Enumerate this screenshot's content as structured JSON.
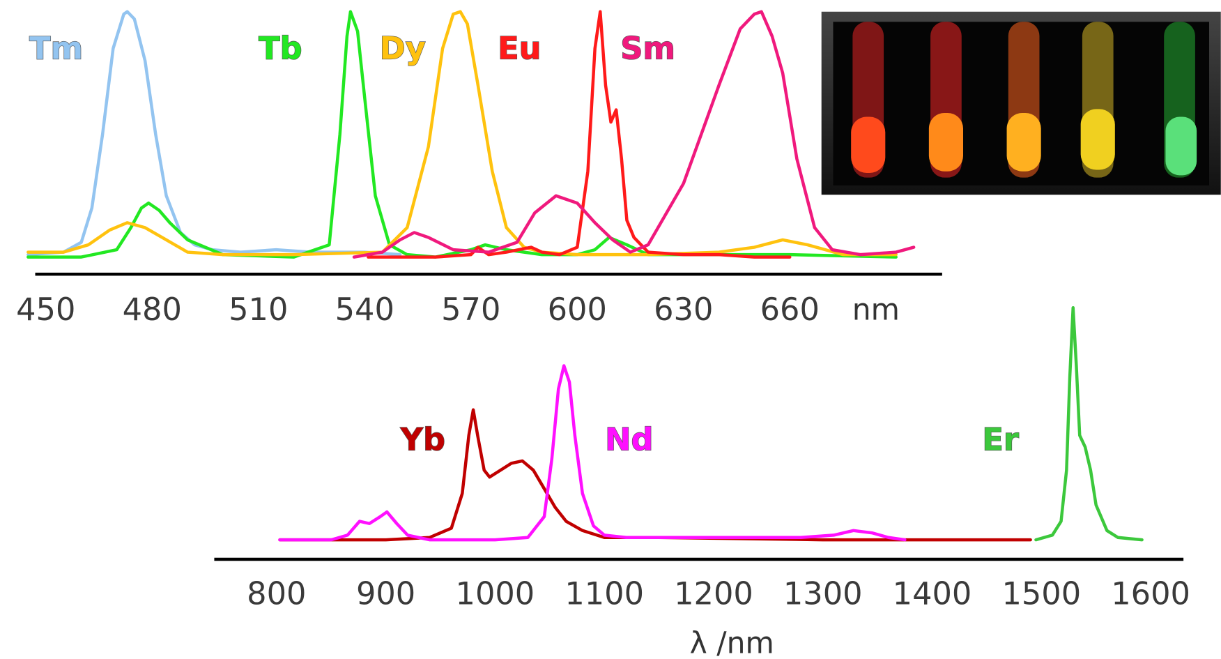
{
  "chart_data": [
    {
      "type": "line",
      "x_label": "nm",
      "xlim": [
        447,
        703
      ],
      "ylim": [
        0,
        1
      ],
      "xticks": [
        450,
        480,
        510,
        540,
        570,
        600,
        630,
        660
      ],
      "series": [
        {
          "name": "Tm",
          "color": "#93c4f0",
          "x": [
            445,
            455,
            460,
            463,
            466,
            469,
            472,
            473,
            475,
            478,
            481,
            484,
            488,
            492,
            497,
            505,
            515,
            525,
            540,
            550
          ],
          "values": [
            0.01,
            0.02,
            0.06,
            0.2,
            0.5,
            0.85,
            0.99,
            1.0,
            0.97,
            0.8,
            0.5,
            0.25,
            0.1,
            0.05,
            0.03,
            0.02,
            0.03,
            0.02,
            0.02,
            0.01
          ]
        },
        {
          "name": "Tb",
          "color": "#22e822",
          "x": [
            445,
            460,
            470,
            474,
            477,
            479,
            482,
            485,
            490,
            500,
            520,
            530,
            533,
            535,
            536,
            538,
            540,
            543,
            547,
            552,
            560,
            570,
            574,
            580,
            590,
            600,
            605,
            609,
            614,
            620,
            640,
            660,
            690
          ],
          "values": [
            0,
            0,
            0.03,
            0.12,
            0.2,
            0.22,
            0.19,
            0.14,
            0.07,
            0.01,
            0,
            0.05,
            0.5,
            0.9,
            1.0,
            0.92,
            0.65,
            0.25,
            0.05,
            0.01,
            0,
            0.03,
            0.05,
            0.03,
            0.01,
            0.01,
            0.03,
            0.08,
            0.05,
            0.01,
            0.01,
            0.01,
            0
          ]
        },
        {
          "name": "Dy",
          "color": "#ffc20e",
          "x": [
            445,
            455,
            462,
            468,
            473,
            478,
            484,
            490,
            500,
            520,
            545,
            552,
            558,
            562,
            565,
            567,
            569,
            572,
            576,
            580,
            585,
            590,
            600,
            620,
            640,
            650,
            658,
            665,
            675,
            690
          ],
          "values": [
            0.02,
            0.02,
            0.05,
            0.11,
            0.14,
            0.12,
            0.07,
            0.02,
            0.01,
            0.01,
            0.02,
            0.12,
            0.45,
            0.85,
            0.99,
            1.0,
            0.95,
            0.7,
            0.35,
            0.12,
            0.04,
            0.02,
            0.01,
            0.01,
            0.02,
            0.04,
            0.07,
            0.05,
            0.01,
            0.01
          ]
        },
        {
          "name": "Eu",
          "color": "#ff1a1a",
          "x": [
            541,
            560,
            570,
            572,
            575,
            580,
            587,
            590,
            595,
            600,
            603,
            605,
            606.5,
            608,
            609.5,
            611,
            612.5,
            614,
            616,
            620,
            630,
            640,
            650,
            660
          ],
          "values": [
            0,
            0,
            0.01,
            0.04,
            0.01,
            0.02,
            0.04,
            0.02,
            0.01,
            0.04,
            0.35,
            0.85,
            1.0,
            0.7,
            0.55,
            0.6,
            0.4,
            0.15,
            0.08,
            0.02,
            0.01,
            0.01,
            0,
            0
          ]
        },
        {
          "name": "Sm",
          "color": "#f0197d",
          "x": [
            537,
            545,
            550,
            554,
            558,
            565,
            575,
            583,
            588,
            594,
            600,
            605,
            610,
            615,
            620,
            630,
            640,
            646,
            650,
            652,
            655,
            658,
            662,
            667,
            672,
            680,
            690,
            695
          ],
          "values": [
            0,
            0.02,
            0.07,
            0.1,
            0.08,
            0.03,
            0.02,
            0.06,
            0.18,
            0.25,
            0.22,
            0.14,
            0.07,
            0.02,
            0.05,
            0.3,
            0.7,
            0.93,
            0.99,
            1.0,
            0.9,
            0.75,
            0.4,
            0.12,
            0.03,
            0.01,
            0.02,
            0.04
          ]
        }
      ]
    },
    {
      "type": "line",
      "x_label": "λ /nm",
      "xlim": [
        743,
        1630
      ],
      "ylim": [
        0,
        1
      ],
      "xticks": [
        800,
        900,
        1000,
        1100,
        1200,
        1300,
        1400,
        1500,
        1600
      ],
      "series": [
        {
          "name": "Yb",
          "color": "#c00000",
          "x": [
            803,
            850,
            900,
            940,
            960,
            970,
            976,
            980,
            984,
            990,
            995,
            1005,
            1015,
            1025,
            1035,
            1045,
            1055,
            1065,
            1080,
            1100,
            1150,
            1300,
            1490
          ],
          "values": [
            0,
            0,
            0,
            0.01,
            0.05,
            0.2,
            0.45,
            0.56,
            0.45,
            0.3,
            0.27,
            0.3,
            0.33,
            0.34,
            0.3,
            0.22,
            0.14,
            0.08,
            0.04,
            0.01,
            0.01,
            0,
            0
          ]
        },
        {
          "name": "Nd",
          "color": "#ff10ff",
          "x": [
            803,
            850,
            865,
            876,
            885,
            895,
            901,
            910,
            920,
            940,
            1000,
            1030,
            1045,
            1052,
            1058,
            1063,
            1068,
            1073,
            1080,
            1090,
            1100,
            1120,
            1200,
            1280,
            1310,
            1328,
            1345,
            1360,
            1375
          ],
          "values": [
            0,
            0,
            0.02,
            0.08,
            0.07,
            0.1,
            0.12,
            0.07,
            0.02,
            0,
            0,
            0.01,
            0.1,
            0.35,
            0.65,
            0.75,
            0.68,
            0.45,
            0.2,
            0.06,
            0.02,
            0.01,
            0.01,
            0.01,
            0.02,
            0.04,
            0.03,
            0.01,
            0
          ]
        },
        {
          "name": "Er",
          "color": "#3cc83c",
          "x": [
            1495,
            1510,
            1518,
            1523,
            1526,
            1529,
            1532,
            1535,
            1540,
            1545,
            1550,
            1560,
            1570,
            1592
          ],
          "values": [
            0,
            0.02,
            0.08,
            0.3,
            0.7,
            1.0,
            0.75,
            0.45,
            0.4,
            0.3,
            0.15,
            0.04,
            0.01,
            0
          ]
        }
      ]
    }
  ]
}
